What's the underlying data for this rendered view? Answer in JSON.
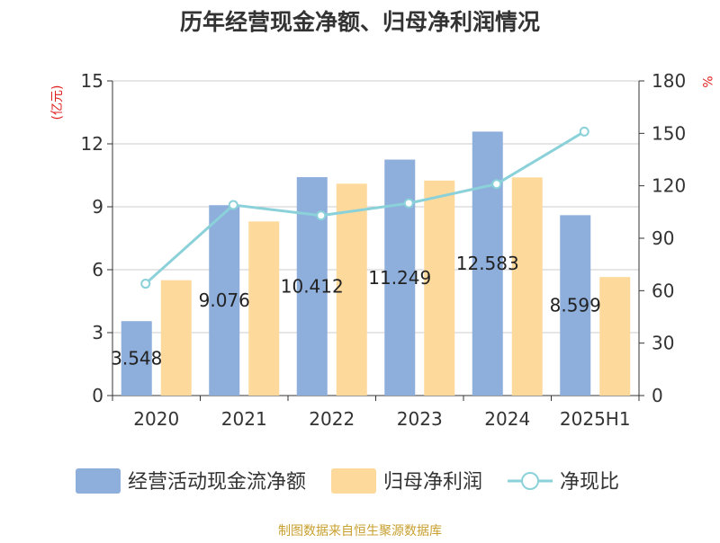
{
  "chart_data": {
    "type": "bar",
    "title": "历年经营现金净额、归母净利润情况",
    "y_left_unit": "(亿元)",
    "y_right_unit": "%",
    "categories": [
      "2020",
      "2021",
      "2022",
      "2023",
      "2024",
      "2025H1"
    ],
    "ylim_left": [
      0,
      15
    ],
    "yticks_left": [
      "0",
      "3",
      "6",
      "9",
      "12",
      "15"
    ],
    "ylim_right": [
      0,
      180
    ],
    "yticks_right": [
      "0",
      "30",
      "60",
      "90",
      "120",
      "150",
      "180"
    ],
    "series": [
      {
        "name": "经营活动现金流净额",
        "type": "bar",
        "axis": "left",
        "color": "#8eafdc",
        "values": [
          3.548,
          9.076,
          10.412,
          11.249,
          12.583,
          8.599
        ],
        "labels": [
          "3.548",
          "9.076",
          "10.412",
          "11.249",
          "12.583",
          "8.599"
        ]
      },
      {
        "name": "归母净利润",
        "type": "bar",
        "axis": "left",
        "color": "#fdd99b",
        "values": [
          5.5,
          8.3,
          10.1,
          10.25,
          10.4,
          5.65
        ]
      },
      {
        "name": "净现比",
        "type": "line",
        "axis": "right",
        "color": "#8bd1d9",
        "values": [
          64,
          109,
          103,
          110,
          121,
          151
        ]
      }
    ],
    "grid": true,
    "legend_position": "bottom"
  },
  "source": "制图数据来自恒生聚源数据库"
}
